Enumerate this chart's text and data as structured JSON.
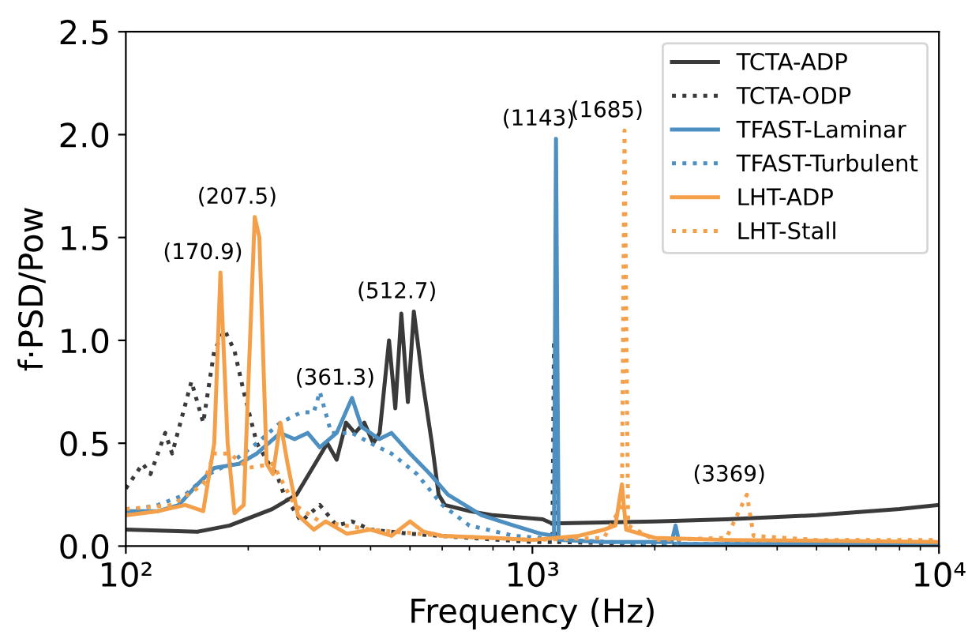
{
  "chart_data": {
    "type": "line",
    "xlabel": "Frequency (Hz)",
    "ylabel": "f·PSD/Pow",
    "log": "x",
    "grid": false,
    "legend": "top right",
    "xlim": [
      100,
      10000
    ],
    "xticks": [
      {
        "value": 100,
        "label": "10²"
      },
      {
        "value": 1000,
        "label": "10³"
      },
      {
        "value": 10000,
        "label": "10⁴"
      }
    ],
    "ylim": [
      0,
      2.5
    ],
    "yticks": [
      {
        "value": 0,
        "label": "0.0"
      },
      {
        "value": 0.5,
        "label": "0.5"
      },
      {
        "value": 1,
        "label": "1.0"
      },
      {
        "value": 1.5,
        "label": "1.5"
      },
      {
        "value": 2,
        "label": "2.0"
      },
      {
        "value": 2.5,
        "label": "2.5"
      }
    ],
    "series": [
      {
        "name": "TCTA-ADP",
        "color": "#3a3a3a",
        "line_style": "solid",
        "x": [
          100,
          150,
          180,
          229,
          263,
          292,
          313,
          330,
          348,
          366,
          386,
          406,
          421,
          444,
          460,
          476,
          494,
          511,
          537,
          566,
          588,
          609,
          700,
          800,
          1060,
          1118,
          2000,
          3000,
          5000,
          8000,
          10000
        ],
        "values": [
          0.08,
          0.07,
          0.1,
          0.18,
          0.25,
          0.4,
          0.5,
          0.42,
          0.6,
          0.55,
          0.6,
          0.5,
          0.55,
          1.0,
          0.67,
          1.13,
          0.7,
          1.14,
          0.8,
          0.5,
          0.25,
          0.2,
          0.17,
          0.15,
          0.13,
          0.11,
          0.12,
          0.13,
          0.15,
          0.18,
          0.2
        ]
      },
      {
        "name": "TCTA-ODP",
        "color": "#3a3a3a",
        "line_style": "dotted",
        "x": [
          100,
          110,
          115,
          125,
          130,
          145,
          155,
          165,
          175,
          185,
          195,
          210,
          225,
          235,
          245,
          270,
          300,
          330,
          360,
          400,
          500,
          700,
          1000,
          1120,
          1130,
          1150,
          2000,
          10000
        ],
        "values": [
          0.28,
          0.4,
          0.35,
          0.55,
          0.45,
          0.8,
          0.6,
          0.95,
          1.05,
          0.95,
          0.75,
          0.5,
          0.4,
          0.35,
          0.25,
          0.12,
          0.2,
          0.1,
          0.12,
          0.08,
          0.06,
          0.04,
          0.02,
          0.02,
          1.0,
          0.02,
          0.01,
          0.01
        ]
      },
      {
        "name": "TFAST-Laminar",
        "color": "#4c8fc0",
        "line_style": "solid",
        "x": [
          100,
          120,
          135,
          150,
          165,
          190,
          210,
          240,
          260,
          280,
          300,
          330,
          360,
          380,
          420,
          450,
          500,
          560,
          620,
          750,
          900,
          1050,
          1130,
          1143,
          1160,
          1500,
          2200,
          2250,
          2300,
          10000
        ],
        "values": [
          0.17,
          0.17,
          0.2,
          0.3,
          0.38,
          0.4,
          0.45,
          0.55,
          0.52,
          0.55,
          0.48,
          0.55,
          0.72,
          0.58,
          0.52,
          0.55,
          0.45,
          0.35,
          0.25,
          0.15,
          0.1,
          0.06,
          0.05,
          1.98,
          0.03,
          0.02,
          0.02,
          0.1,
          0.01,
          0.01
        ]
      },
      {
        "name": "TFAST-Turbulent",
        "color": "#4c8fc0",
        "line_style": "dotted",
        "x": [
          100,
          120,
          140,
          160,
          180,
          210,
          240,
          270,
          290,
          300,
          320,
          360,
          400,
          450,
          520,
          600,
          700,
          900,
          1200,
          2000,
          10000
        ],
        "values": [
          0.17,
          0.2,
          0.25,
          0.35,
          0.4,
          0.5,
          0.6,
          0.65,
          0.65,
          0.75,
          0.55,
          0.55,
          0.5,
          0.45,
          0.35,
          0.2,
          0.1,
          0.05,
          0.03,
          0.01,
          0.01
        ]
      },
      {
        "name": "LHT-ADP",
        "color": "#f4a04a",
        "line_style": "solid",
        "x": [
          100,
          120,
          140,
          155,
          165,
          170.9,
          178,
          185,
          195,
          207.5,
          213,
          222,
          230,
          240,
          250,
          265,
          290,
          310,
          350,
          400,
          450,
          500,
          540,
          600,
          800,
          1000,
          1300,
          1500,
          1600,
          1660,
          1700,
          2000,
          3000,
          10000
        ],
        "values": [
          0.15,
          0.17,
          0.2,
          0.17,
          0.5,
          1.33,
          0.5,
          0.16,
          0.2,
          1.6,
          1.5,
          0.4,
          0.35,
          0.6,
          0.4,
          0.15,
          0.08,
          0.12,
          0.06,
          0.08,
          0.05,
          0.12,
          0.07,
          0.05,
          0.04,
          0.03,
          0.05,
          0.08,
          0.1,
          0.3,
          0.08,
          0.04,
          0.03,
          0.02
        ]
      },
      {
        "name": "LHT-Stall",
        "color": "#f4a04a",
        "line_style": "dotted",
        "x": [
          100,
          130,
          155,
          165,
          180,
          200,
          230,
          260,
          300,
          400,
          600,
          1000,
          1500,
          1660,
          1685,
          1720,
          2000,
          3000,
          3369,
          3500,
          5000,
          10000
        ],
        "values": [
          0.18,
          0.2,
          0.3,
          0.45,
          0.45,
          0.38,
          0.4,
          0.2,
          0.12,
          0.08,
          0.05,
          0.03,
          0.04,
          0.2,
          2.02,
          0.1,
          0.03,
          0.04,
          0.25,
          0.05,
          0.03,
          0.03
        ]
      }
    ],
    "annotations": [
      {
        "text": "(170.9)",
        "x": 170.9,
        "y": 1.33
      },
      {
        "text": "(207.5)",
        "x": 207.5,
        "y": 1.6
      },
      {
        "text": "(361.3)",
        "x": 361.3,
        "y": 0.72
      },
      {
        "text": "(512.7)",
        "x": 512.7,
        "y": 1.14
      },
      {
        "text": "(1143)",
        "x": 1143,
        "y": 1.98
      },
      {
        "text": "(1685)",
        "x": 1685,
        "y": 2.02
      },
      {
        "text": "(3369)",
        "x": 3369,
        "y": 0.25
      }
    ]
  }
}
